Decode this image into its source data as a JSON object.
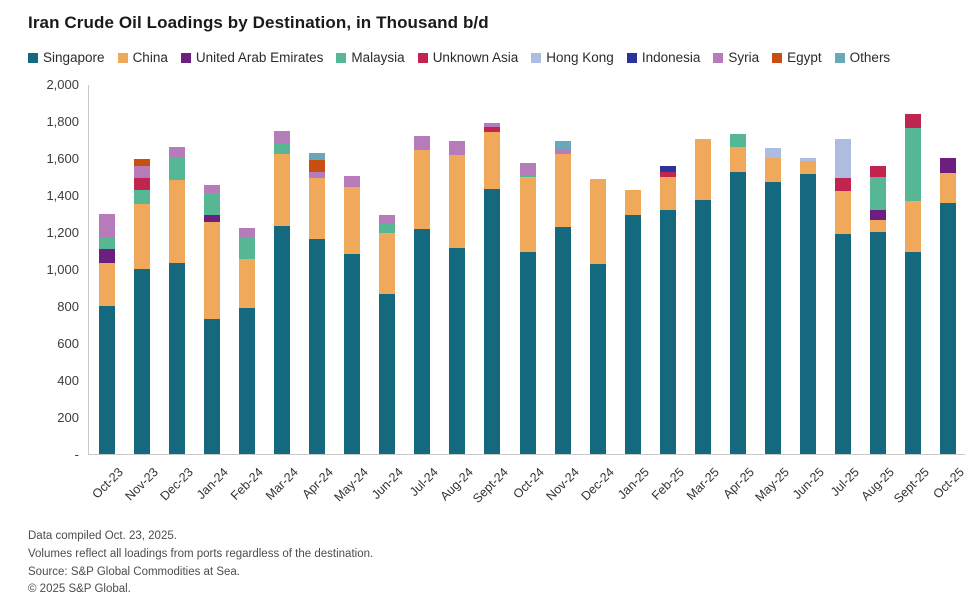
{
  "chart_data": {
    "type": "bar",
    "variant": "stacked",
    "title": "Iran Crude Oil Loadings by Destination, in Thousand b/d",
    "xlabel": "",
    "ylabel": "",
    "ylim": [
      0,
      2000
    ],
    "grid": false,
    "legend_position": "top",
    "y_ticks": [
      {
        "value": 2000,
        "label": "2,000"
      },
      {
        "value": 1800,
        "label": "1,800"
      },
      {
        "value": 1600,
        "label": "1,600"
      },
      {
        "value": 1400,
        "label": "1,400"
      },
      {
        "value": 1200,
        "label": "1,200"
      },
      {
        "value": 1000,
        "label": "1,000"
      },
      {
        "value": 800,
        "label": "800"
      },
      {
        "value": 600,
        "label": "600"
      },
      {
        "value": 400,
        "label": "400"
      },
      {
        "value": 200,
        "label": "200"
      },
      {
        "value": 0,
        "label": "-"
      }
    ],
    "categories": [
      "Oct-23",
      "Nov-23",
      "Dec-23",
      "Jan-24",
      "Feb-24",
      "Mar-24",
      "Apr-24",
      "May-24",
      "Jun-24",
      "Jul-24",
      "Aug-24",
      "Sept-24",
      "Oct-24",
      "Nov-24",
      "Dec-24",
      "Jan-25",
      "Feb-25",
      "Mar-25",
      "Apr-25",
      "May-25",
      "Jun-25",
      "Jul-25",
      "Aug-25",
      "Sept-25",
      "Oct-25"
    ],
    "series": [
      {
        "name": "Singapore",
        "color": "#15697F",
        "values": [
          800,
          1000,
          1035,
          730,
          790,
          1230,
          1160,
          1080,
          865,
          1215,
          1115,
          1430,
          1090,
          1225,
          1025,
          1290,
          1320,
          1375,
          1525,
          1470,
          1515,
          1190,
          1200,
          1090,
          1355
        ]
      },
      {
        "name": "China",
        "color": "#F0A95A",
        "values": [
          235,
          350,
          445,
          525,
          265,
          390,
          330,
          365,
          330,
          430,
          500,
          310,
          405,
          395,
          460,
          135,
          175,
          330,
          135,
          130,
          70,
          230,
          65,
          280,
          165
        ]
      },
      {
        "name": "United Arab Emirates",
        "color": "#6B1F7E",
        "values": [
          75,
          0,
          0,
          35,
          0,
          0,
          0,
          0,
          0,
          0,
          0,
          0,
          0,
          0,
          0,
          0,
          0,
          0,
          0,
          0,
          0,
          0,
          55,
          0,
          80
        ]
      },
      {
        "name": "Malaysia",
        "color": "#57B795",
        "values": [
          65,
          75,
          125,
          120,
          115,
          55,
          0,
          0,
          55,
          0,
          0,
          0,
          15,
          0,
          0,
          0,
          0,
          0,
          70,
          0,
          0,
          0,
          180,
          390,
          0
        ]
      },
      {
        "name": "Unknown Asia",
        "color": "#C1254F",
        "values": [
          0,
          65,
          0,
          0,
          0,
          0,
          0,
          0,
          0,
          0,
          0,
          25,
          0,
          0,
          0,
          0,
          30,
          0,
          0,
          0,
          0,
          70,
          55,
          80,
          0
        ]
      },
      {
        "name": "Hong Kong",
        "color": "#AFBCE2",
        "values": [
          0,
          0,
          0,
          0,
          0,
          0,
          0,
          0,
          0,
          0,
          0,
          0,
          0,
          0,
          0,
          0,
          0,
          0,
          0,
          55,
          15,
          215,
          0,
          0,
          0
        ]
      },
      {
        "name": "Indonesia",
        "color": "#2A3499",
        "values": [
          0,
          0,
          0,
          0,
          0,
          0,
          0,
          0,
          0,
          0,
          0,
          0,
          0,
          0,
          0,
          0,
          30,
          0,
          0,
          0,
          0,
          0,
          0,
          0,
          0
        ]
      },
      {
        "name": "Syria",
        "color": "#B67BB9",
        "values": [
          120,
          65,
          55,
          45,
          50,
          70,
          35,
          60,
          40,
          75,
          75,
          25,
          65,
          30,
          0,
          0,
          0,
          0,
          0,
          0,
          0,
          0,
          0,
          0,
          0
        ]
      },
      {
        "name": "Egypt",
        "color": "#C94E12",
        "values": [
          0,
          40,
          0,
          0,
          0,
          0,
          65,
          0,
          0,
          0,
          0,
          0,
          0,
          0,
          0,
          0,
          0,
          0,
          0,
          0,
          0,
          0,
          0,
          0,
          0
        ]
      },
      {
        "name": "Others",
        "color": "#69A7BA",
        "values": [
          0,
          0,
          0,
          0,
          0,
          0,
          35,
          0,
          0,
          0,
          0,
          0,
          0,
          40,
          0,
          0,
          0,
          0,
          0,
          0,
          0,
          0,
          0,
          0,
          0
        ]
      }
    ]
  },
  "footer": {
    "lines": [
      "Data compiled Oct. 23, 2025.",
      "Volumes reflect all loadings from ports regardless of the destination.",
      "Source: S&P Global Commodities at Sea.",
      "© 2025 S&P Global."
    ]
  }
}
